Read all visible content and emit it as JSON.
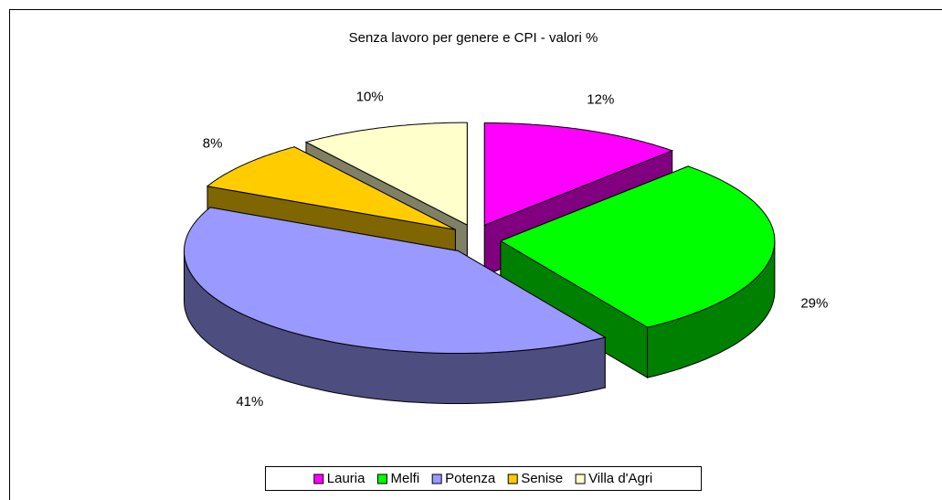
{
  "chart_data": {
    "type": "pie3d",
    "title": "Senza lavoro per genere e CPI - valori %",
    "categories": [
      "Lauria",
      "Melfi",
      "Potenza",
      "Senise",
      "Villa d'Agri"
    ],
    "values": [
      12,
      29,
      41,
      8,
      10
    ],
    "value_labels": [
      "12%",
      "29%",
      "41%",
      "8%",
      "10%"
    ],
    "colors": [
      "#ff00ff",
      "#00ff00",
      "#9999ff",
      "#ffcc00",
      "#ffffcc"
    ],
    "legend": "bottom"
  }
}
